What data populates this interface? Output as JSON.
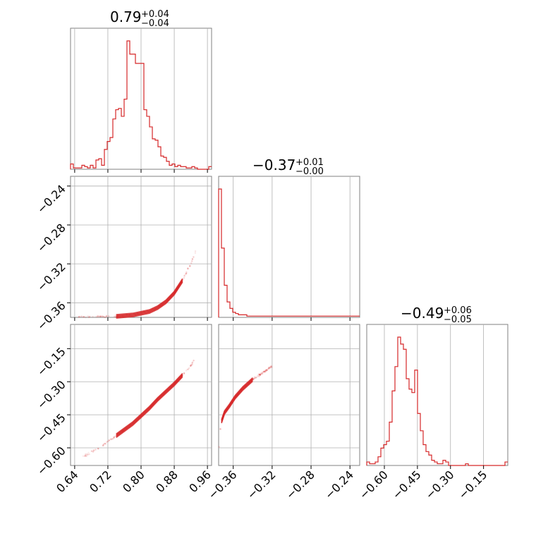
{
  "chart_data": {
    "type": "corner",
    "color": "#d62728",
    "parameters": [
      {
        "title": {
          "main": "0.79",
          "upper": "+0.04",
          "lower": "−0.04"
        },
        "range": [
          0.63,
          0.97
        ],
        "ticks": [
          "0.64",
          "0.72",
          "0.80",
          "0.88",
          "0.96"
        ],
        "tick_values": [
          0.64,
          0.72,
          0.8,
          0.88,
          0.96
        ]
      },
      {
        "title": {
          "main": "−0.37",
          "upper": "+0.01",
          "lower": "−0.00"
        },
        "range": [
          -0.375,
          -0.23
        ],
        "ticks": [
          "−0.36",
          "−0.32",
          "−0.28",
          "−0.24"
        ],
        "tick_values": [
          -0.36,
          -0.32,
          -0.28,
          -0.24
        ]
      },
      {
        "title": {
          "main": "−0.49",
          "upper": "+0.06",
          "lower": "−0.05"
        },
        "range": [
          -0.68,
          -0.04
        ],
        "ticks": [
          "−0.60",
          "−0.45",
          "−0.30",
          "−0.15"
        ],
        "tick_values": [
          -0.6,
          -0.45,
          -0.3,
          -0.15
        ]
      }
    ],
    "histograms": [
      {
        "param": 0,
        "edges_start": 0.63,
        "bin_width": 0.0068,
        "counts": [
          4,
          1,
          1,
          1,
          3,
          2,
          1,
          3,
          1,
          7,
          8,
          3,
          15,
          21,
          24,
          38,
          45,
          46,
          40,
          53,
          97,
          87,
          87,
          80,
          80,
          80,
          45,
          40,
          32,
          23,
          22,
          17,
          10,
          9,
          6,
          3,
          4,
          2,
          3,
          2,
          2,
          1,
          1,
          2,
          1,
          0,
          0,
          0,
          0,
          2
        ]
      },
      {
        "param": 1,
        "edges_start": -0.375,
        "bin_width": 0.0029,
        "counts": [
          100,
          54,
          25,
          12,
          7,
          4,
          3,
          2,
          2,
          2,
          1,
          1,
          1,
          1,
          1,
          1,
          1,
          1,
          1,
          1,
          1,
          1,
          1,
          1,
          1,
          1,
          1,
          1,
          1,
          1,
          1,
          1,
          1,
          1,
          1,
          1,
          1,
          1,
          1,
          1,
          1,
          1,
          1,
          1,
          1,
          1,
          1,
          1,
          1,
          1
        ]
      },
      {
        "param": 2,
        "edges_start": -0.68,
        "bin_width": 0.0128,
        "counts": [
          2,
          1,
          1,
          2,
          5,
          10,
          12,
          14,
          25,
          43,
          57,
          74,
          70,
          67,
          50,
          44,
          42,
          55,
          30,
          20,
          12,
          8,
          6,
          3,
          2,
          1,
          1,
          3,
          2,
          0,
          0,
          0,
          0,
          0,
          0,
          1,
          0,
          0,
          0,
          0,
          0,
          0,
          0,
          0,
          0,
          0,
          0,
          0,
          0,
          2
        ]
      }
    ],
    "joint_2d": [
      {
        "x_param": 0,
        "y_param": 1,
        "ridge_x": [
          0.65,
          0.7,
          0.74,
          0.78,
          0.82,
          0.84,
          0.86,
          0.88,
          0.9,
          0.92,
          0.935
        ],
        "ridge_y": [
          -0.3748,
          -0.3746,
          -0.374,
          -0.3725,
          -0.369,
          -0.365,
          -0.359,
          -0.35,
          -0.337,
          -0.32,
          -0.304
        ]
      },
      {
        "x_param": 0,
        "y_param": 2,
        "ridge_x": [
          0.66,
          0.7,
          0.74,
          0.78,
          0.82,
          0.84,
          0.86,
          0.88,
          0.9,
          0.92,
          0.93
        ],
        "ridge_y": [
          -0.64,
          -0.6,
          -0.545,
          -0.49,
          -0.42,
          -0.38,
          -0.345,
          -0.31,
          -0.27,
          -0.23,
          -0.19
        ]
      },
      {
        "x_param": 1,
        "y_param": 2,
        "ridge_x": [
          -0.3748,
          -0.374,
          -0.372,
          -0.369,
          -0.364,
          -0.358,
          -0.35,
          -0.34,
          -0.33,
          -0.32
        ],
        "ridge_y": [
          -0.62,
          -0.54,
          -0.48,
          -0.44,
          -0.41,
          -0.37,
          -0.33,
          -0.29,
          -0.26,
          -0.23
        ]
      }
    ]
  }
}
